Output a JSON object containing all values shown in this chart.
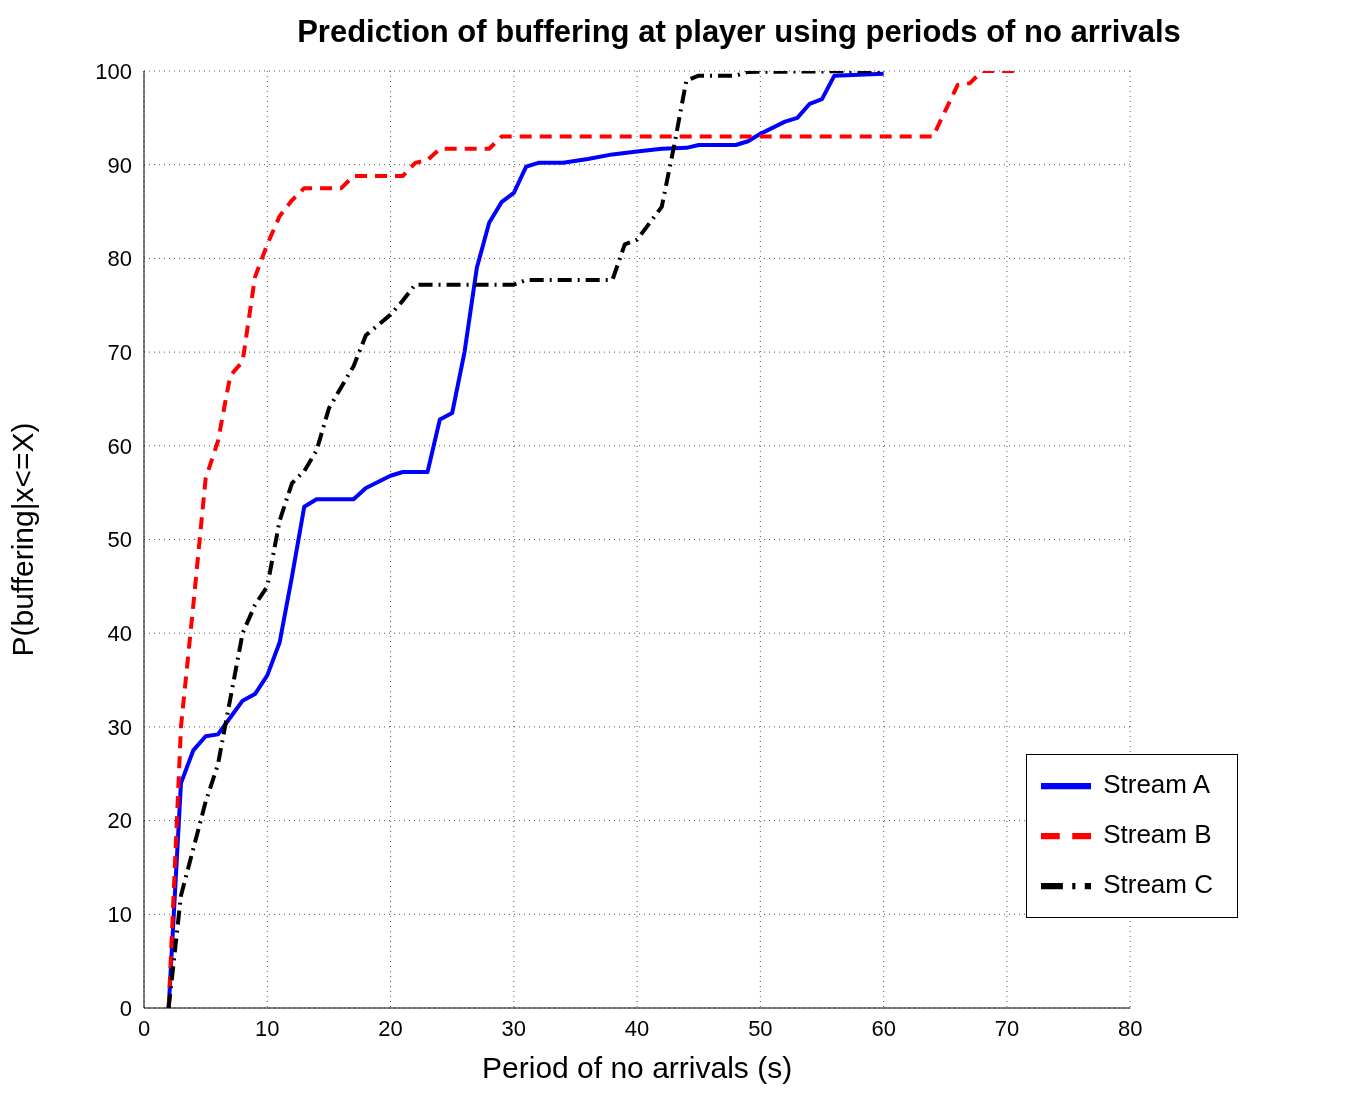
{
  "chart_data": {
    "type": "line",
    "title": "Prediction of buffering at player using periods of no arrivals",
    "xlabel": "Period of no arrivals (s)",
    "ylabel": "P(buffering|x<=X)",
    "xlim": [
      0,
      80
    ],
    "xticks": [
      0,
      10,
      20,
      30,
      40,
      50,
      60,
      70,
      80
    ],
    "ylim": [
      0,
      100
    ],
    "yticks": [
      0,
      10,
      20,
      30,
      40,
      50,
      60,
      70,
      80,
      90,
      100
    ],
    "grid": true,
    "legend": "bottom right",
    "marker": "none",
    "series": [
      {
        "name": "Stream A",
        "color": "#0000ff",
        "line_style": "solid",
        "x": [
          2,
          2.5,
          3,
          4,
          5,
          6,
          7,
          8,
          9,
          10,
          11,
          12,
          13,
          14,
          17,
          18,
          20,
          21,
          23,
          24,
          25,
          26,
          27,
          28,
          29,
          30,
          31,
          32,
          34,
          36,
          38,
          40,
          42,
          44,
          45,
          48,
          49,
          50,
          52,
          53,
          54,
          55,
          56,
          58,
          60
        ],
        "values": [
          0,
          12,
          24,
          27.5,
          29,
          29.2,
          31,
          32.8,
          33.5,
          35.5,
          39,
          46,
          53.5,
          54.3,
          54.3,
          55.5,
          56.8,
          57.2,
          57.2,
          62.8,
          63.5,
          70,
          79,
          83.8,
          86,
          87,
          89.8,
          90.2,
          90.2,
          90.6,
          91.1,
          91.4,
          91.7,
          91.8,
          92.1,
          92.1,
          92.5,
          93.3,
          94.6,
          95,
          96.5,
          97,
          99.5,
          99.6,
          99.7
        ]
      },
      {
        "name": "Stream B",
        "color": "#ff0000",
        "line_style": "dashed",
        "x": [
          2,
          2.5,
          3,
          4,
          5,
          6,
          7,
          8,
          9,
          10,
          11,
          12,
          13,
          16,
          17,
          21,
          22,
          23,
          24,
          28,
          29,
          64,
          66,
          67,
          68,
          71
        ],
        "values": [
          0,
          15,
          30,
          43,
          56.5,
          60.5,
          67.5,
          69,
          78,
          81.5,
          84.5,
          86.2,
          87.5,
          87.5,
          88.8,
          88.8,
          90.2,
          90.5,
          91.7,
          91.7,
          93,
          93,
          98.5,
          98.7,
          100,
          100
        ]
      },
      {
        "name": "Stream C",
        "color": "#000000",
        "line_style": "dashdot",
        "x": [
          2,
          2.5,
          3,
          4,
          5,
          6,
          7,
          8,
          9,
          10,
          11,
          12,
          13,
          14,
          15,
          17,
          18,
          20,
          21,
          22,
          30,
          31,
          38,
          39,
          40,
          42,
          43,
          44,
          45,
          48,
          49,
          60
        ],
        "values": [
          0,
          6,
          12,
          17,
          22,
          26,
          33,
          40,
          43,
          45,
          52,
          56,
          57.3,
          59.5,
          64,
          68.5,
          71.8,
          74,
          75.5,
          77.2,
          77.2,
          77.7,
          77.7,
          81.5,
          82,
          85.5,
          92,
          99,
          99.5,
          99.5,
          99.9,
          100
        ]
      }
    ]
  }
}
